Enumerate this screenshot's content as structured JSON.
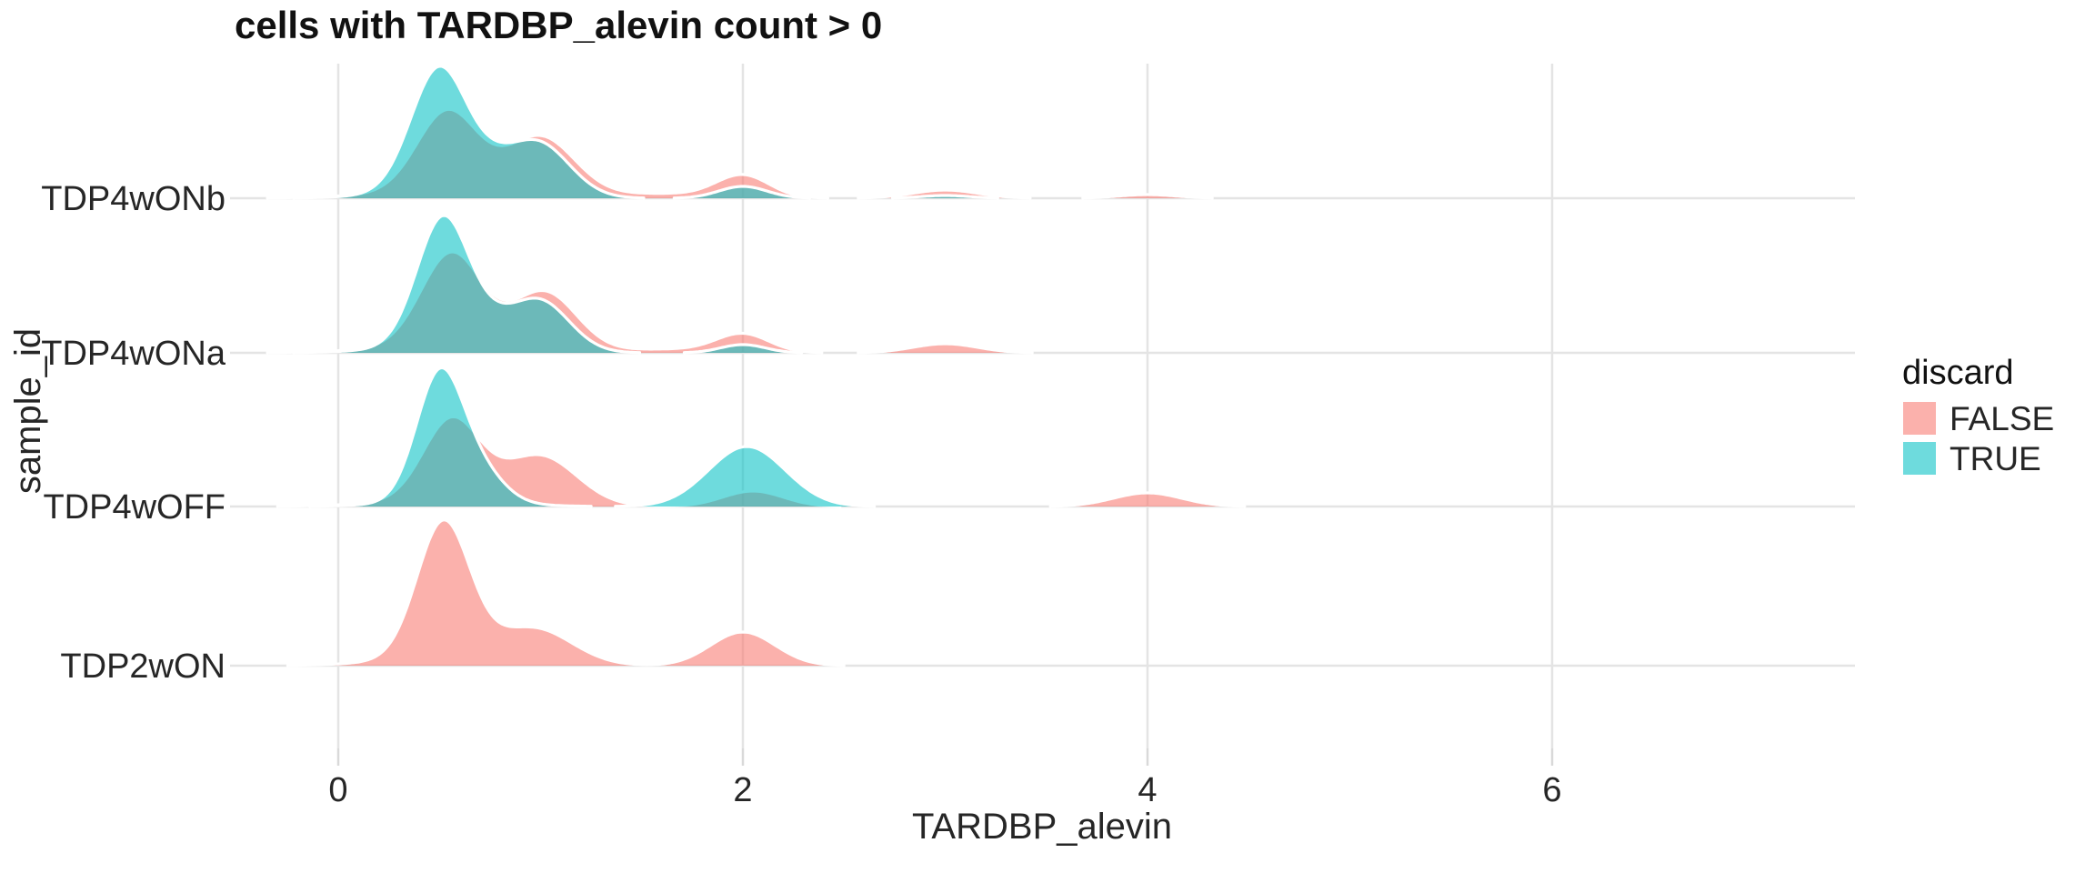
{
  "chart_data": {
    "type": "ridgeline",
    "title": "cells with TARDBP_alevin count > 0",
    "xlabel": "TARDBP_alevin",
    "ylabel": "sample_id",
    "x_ticks": [
      "0",
      "2",
      "4",
      "6"
    ],
    "x_tick_values": [
      0,
      2,
      4,
      6
    ],
    "x_range": [
      -0.53,
      7.5
    ],
    "grid": "on",
    "grid_color": "#E4E4E4",
    "text_color": "#262626",
    "title_color": "#111111",
    "fill_alpha": 0.57,
    "outline_color": "#ffffff",
    "legend": {
      "title": "discard",
      "position": "right",
      "entries": [
        {
          "label": "FALSE",
          "color": "#F8766D"
        },
        {
          "label": "TRUE",
          "color": "#00BFC4"
        }
      ]
    },
    "rows": [
      {
        "label": "TDP4wONb",
        "series": [
          {
            "name": "FALSE",
            "color": "#F8766D",
            "components": [
              {
                "mean": 0.54,
                "sd": 0.15,
                "peak": 88
              },
              {
                "mean": 1.0,
                "sd": 0.17,
                "peak": 64
              },
              {
                "mean": 0.55,
                "sd": 0.35,
                "peak": 8
              },
              {
                "mean": 1.6,
                "sd": 0.3,
                "peak": 5
              },
              {
                "mean": 2.0,
                "sd": 0.13,
                "peak": 24
              },
              {
                "mean": 3.0,
                "sd": 0.16,
                "peak": 9
              },
              {
                "mean": 4.0,
                "sd": 0.14,
                "peak": 4
              }
            ]
          },
          {
            "name": "TRUE",
            "color": "#00BFC4",
            "components": [
              {
                "mean": 0.5,
                "sd": 0.14,
                "peak": 136
              },
              {
                "mean": 0.75,
                "sd": 0.1,
                "peak": 12
              },
              {
                "mean": 0.98,
                "sd": 0.16,
                "peak": 60
              },
              {
                "mean": 0.55,
                "sd": 0.3,
                "peak": 8
              },
              {
                "mean": 2.0,
                "sd": 0.12,
                "peak": 13
              },
              {
                "mean": 3.0,
                "sd": 0.12,
                "peak": 3
              }
            ]
          }
        ]
      },
      {
        "label": "TDP4wONa",
        "series": [
          {
            "name": "FALSE",
            "color": "#F8766D",
            "components": [
              {
                "mean": 0.56,
                "sd": 0.15,
                "peak": 102
              },
              {
                "mean": 1.02,
                "sd": 0.16,
                "peak": 64
              },
              {
                "mean": 0.55,
                "sd": 0.35,
                "peak": 8
              },
              {
                "mean": 1.65,
                "sd": 0.25,
                "peak": 4
              },
              {
                "mean": 2.0,
                "sd": 0.13,
                "peak": 20
              },
              {
                "mean": 3.0,
                "sd": 0.16,
                "peak": 10
              }
            ]
          },
          {
            "name": "TRUE",
            "color": "#00BFC4",
            "components": [
              {
                "mean": 0.52,
                "sd": 0.13,
                "peak": 142
              },
              {
                "mean": 0.76,
                "sd": 0.1,
                "peak": 12
              },
              {
                "mean": 0.99,
                "sd": 0.15,
                "peak": 56
              },
              {
                "mean": 0.55,
                "sd": 0.3,
                "peak": 8
              },
              {
                "mean": 2.0,
                "sd": 0.11,
                "peak": 9
              }
            ]
          }
        ]
      },
      {
        "label": "TDP4wOFF",
        "series": [
          {
            "name": "FALSE",
            "color": "#F8766D",
            "components": [
              {
                "mean": 0.56,
                "sd": 0.14,
                "peak": 88
              },
              {
                "mean": 1.0,
                "sd": 0.18,
                "peak": 52
              },
              {
                "mean": 0.6,
                "sd": 0.35,
                "peak": 8
              },
              {
                "mean": 2.05,
                "sd": 0.15,
                "peak": 17
              },
              {
                "mean": 4.0,
                "sd": 0.17,
                "peak": 15
              }
            ]
          },
          {
            "name": "TRUE",
            "color": "#00BFC4",
            "components": [
              {
                "mean": 0.5,
                "sd": 0.115,
                "peak": 138
              },
              {
                "mean": 0.7,
                "sd": 0.12,
                "peak": 32
              },
              {
                "mean": 0.55,
                "sd": 0.28,
                "peak": 6
              },
              {
                "mean": 2.02,
                "sd": 0.19,
                "peak": 66
              }
            ]
          }
        ]
      },
      {
        "label": "TDP2wON",
        "series": [
          {
            "name": "FALSE",
            "color": "#F8766D",
            "components": [
              {
                "mean": 0.52,
                "sd": 0.13,
                "peak": 148
              },
              {
                "mean": 0.97,
                "sd": 0.19,
                "peak": 38
              },
              {
                "mean": 0.55,
                "sd": 0.3,
                "peak": 10
              },
              {
                "mean": 2.0,
                "sd": 0.16,
                "peak": 37
              }
            ]
          },
          {
            "name": "TRUE",
            "color": "#00BFC4",
            "components": []
          }
        ]
      }
    ]
  }
}
